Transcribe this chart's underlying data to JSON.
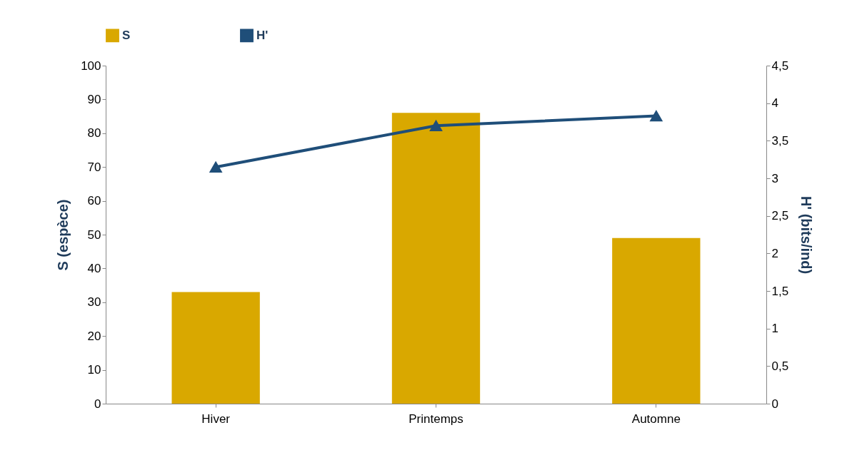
{
  "chart_data": {
    "type": "bar",
    "categories": [
      "Hiver",
      "Printemps",
      "Automne"
    ],
    "ylabel": "S (espèce)",
    "y2label": "H' (bits/ind)",
    "series": [
      {
        "name": "S",
        "color": "#d9a800",
        "values": [
          33,
          86,
          49
        ]
      },
      {
        "name": "H'",
        "type": "line",
        "axis": "y2",
        "color": "#1f4e79",
        "values": [
          3.15,
          3.7,
          3.83
        ]
      }
    ],
    "ylim": [
      0,
      100
    ],
    "yticks": [
      0,
      10,
      20,
      30,
      40,
      50,
      60,
      70,
      80,
      90,
      100
    ],
    "y2lim": [
      0,
      4.5
    ],
    "y2ticks": [
      0,
      {
        "value": 0.5,
        "label": "0,5"
      },
      1,
      {
        "value": 1.5,
        "label": "1,5"
      },
      2,
      {
        "value": 2.5,
        "label": "2,5"
      },
      3,
      {
        "value": 3.5,
        "label": "3,5"
      },
      4,
      {
        "value": 4.5,
        "label": "4,5"
      }
    ],
    "marker": "triangle",
    "legend": "top",
    "grid": false
  }
}
